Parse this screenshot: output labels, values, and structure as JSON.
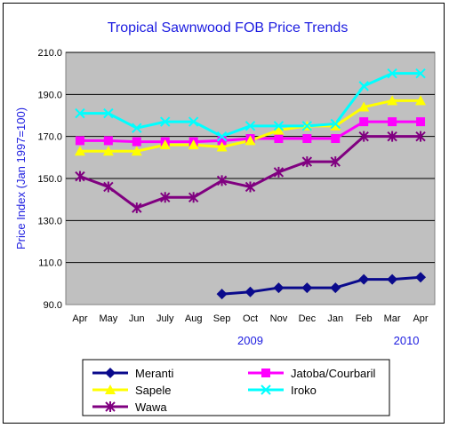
{
  "chart_data": {
    "type": "line",
    "title": "Tropical Sawnwood FOB Price Trends",
    "xlabel": "",
    "ylabel": "Price Index (Jan 1997=100)",
    "categories": [
      "Apr",
      "May",
      "Jun",
      "July",
      "Aug",
      "Sep",
      "Oct",
      "Nov",
      "Dec",
      "Jan",
      "Feb",
      "Mar",
      "Apr"
    ],
    "year_labels": [
      {
        "label": "2009",
        "category_index": 6
      },
      {
        "label": "2010",
        "category_index": 11.5
      }
    ],
    "ylim": [
      90,
      210
    ],
    "yticks": [
      "90.0",
      "110.0",
      "130.0",
      "150.0",
      "170.0",
      "190.0",
      "210.0"
    ],
    "grid": true,
    "plot_background": "#c0c0c0",
    "legend_placement": "bottom",
    "series": [
      {
        "name": "Meranti",
        "color": "#0a0a8c",
        "marker": "diamond",
        "values": [
          null,
          null,
          null,
          null,
          null,
          95,
          96,
          98,
          98,
          98,
          102,
          102,
          103
        ]
      },
      {
        "name": "Jatoba/Courbaril",
        "color": "#ff00ff",
        "marker": "square",
        "values": [
          168,
          168,
          167.5,
          167.5,
          167.5,
          168,
          169,
          169,
          169,
          169,
          177,
          177,
          177
        ]
      },
      {
        "name": "Sapele",
        "color": "#ffff00",
        "marker": "triangle",
        "values": [
          163,
          163,
          163,
          166,
          166,
          165,
          168,
          173,
          175,
          175,
          184,
          187,
          187
        ]
      },
      {
        "name": "Iroko",
        "color": "#00ffff",
        "marker": "x",
        "values": [
          181,
          181,
          174,
          177,
          177,
          170,
          175,
          175,
          175,
          176,
          194,
          200,
          200
        ]
      },
      {
        "name": "Wawa",
        "color": "#800080",
        "marker": "star",
        "values": [
          151,
          146,
          136,
          141,
          141,
          149,
          146,
          153,
          158,
          158,
          170,
          170,
          170
        ]
      }
    ]
  }
}
